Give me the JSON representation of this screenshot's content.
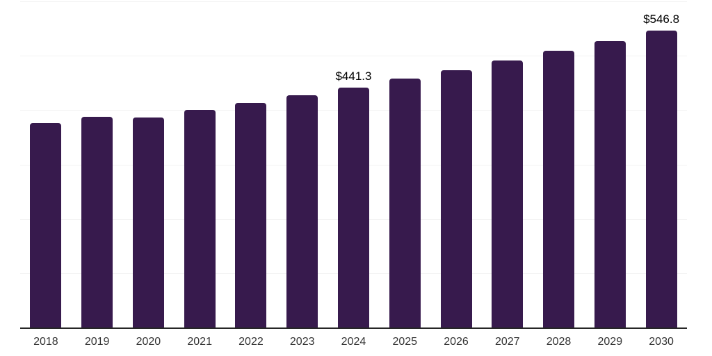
{
  "chart_data": {
    "type": "bar",
    "title": "",
    "xlabel": "",
    "ylabel": "",
    "categories": [
      "2018",
      "2019",
      "2020",
      "2021",
      "2022",
      "2023",
      "2024",
      "2025",
      "2026",
      "2027",
      "2028",
      "2029",
      "2030"
    ],
    "values": [
      375.5,
      388.2,
      385.8,
      399.9,
      412.6,
      427.4,
      441.3,
      457.4,
      474.0,
      491.3,
      509.2,
      527.7,
      546.8
    ],
    "data_labels": [
      "",
      "",
      "",
      "",
      "",
      "",
      "$441.3",
      "",
      "",
      "",
      "",
      "",
      "$546.8"
    ],
    "ylim": [
      0,
      600
    ],
    "gridlines": [
      0,
      100,
      200,
      300,
      400,
      500,
      600
    ],
    "grid": "horizontal-only",
    "legend": "none"
  },
  "colors": {
    "bar": "#371A4D",
    "grid_line": "#F2F2F2",
    "axis_line": "#262626",
    "value_label": "#000000",
    "tick_label": "#333333",
    "background": "#FFFFFF"
  }
}
